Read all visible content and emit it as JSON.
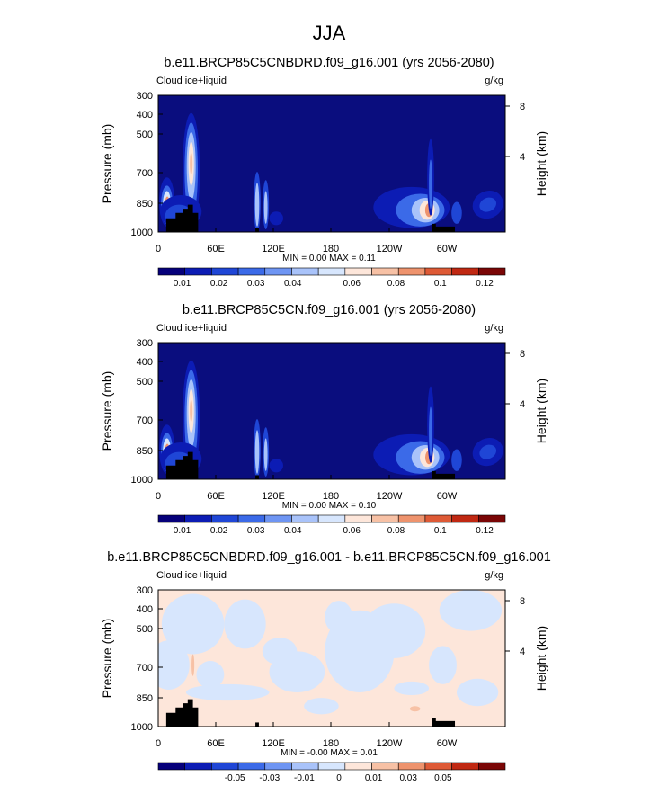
{
  "page": {
    "title": "JJA"
  },
  "colors": {
    "levels12": [
      "#06007a",
      "#0c1cb4",
      "#1f46d6",
      "#3b6ae8",
      "#6e95f3",
      "#a9c3fa",
      "#d7e6fd",
      "#fde6da",
      "#f7c1a5",
      "#ee936d",
      "#de5a36",
      "#c02812",
      "#7a0606"
    ],
    "diff12": [
      "#06007a",
      "#0c1cb4",
      "#1f46d6",
      "#3b6ae8",
      "#6e95f3",
      "#a9c3fa",
      "#d7e6fd",
      "#fde6da",
      "#f7c1a5",
      "#ee936d",
      "#de5a36",
      "#c02812",
      "#7a0606"
    ],
    "background": "#0a0d7e",
    "diff_background": "#fde6da",
    "land": "#000000"
  },
  "chart_data": [
    {
      "type": "heatmap",
      "title": "b.e11.BRCP85C5CNBDRD.f09_g16.001 (yrs 2056-2080)",
      "left_label": "Cloud ice+liquid",
      "units": "g/kg",
      "ylabel": "Pressure (mb)",
      "y2label": "Height (km)",
      "yticks": [
        "300",
        "400",
        "500",
        "700",
        "850",
        "1000"
      ],
      "y2ticks": [
        "8",
        "4"
      ],
      "xticks": [
        "0",
        "60E",
        "120E",
        "180",
        "120W",
        "60W"
      ],
      "minmax": "MIN =   0.00  MAX =  0.11",
      "colorbar_labels": [
        "0.01",
        "0.02",
        "0.03",
        "0.04",
        "0.06",
        "0.08",
        "0.1",
        "0.12"
      ]
    },
    {
      "type": "heatmap",
      "title": "b.e11.BRCP85C5CN.f09_g16.001 (yrs 2056-2080)",
      "left_label": "Cloud ice+liquid",
      "units": "g/kg",
      "ylabel": "Pressure (mb)",
      "y2label": "Height (km)",
      "yticks": [
        "300",
        "400",
        "500",
        "700",
        "850",
        "1000"
      ],
      "y2ticks": [
        "8",
        "4"
      ],
      "xticks": [
        "0",
        "60E",
        "120E",
        "180",
        "120W",
        "60W"
      ],
      "minmax": "MIN =   0.00  MAX =  0.10",
      "colorbar_labels": [
        "0.01",
        "0.02",
        "0.03",
        "0.04",
        "0.06",
        "0.08",
        "0.1",
        "0.12"
      ]
    },
    {
      "type": "heatmap",
      "title": "b.e11.BRCP85C5CNBDRD.f09_g16.001 - b.e11.BRCP85C5CN.f09_g16.001",
      "left_label": "Cloud ice+liquid",
      "units": "g/kg",
      "ylabel": "Pressure (mb)",
      "y2label": "Height (km)",
      "yticks": [
        "300",
        "400",
        "500",
        "700",
        "850",
        "1000"
      ],
      "y2ticks": [
        "8",
        "4"
      ],
      "xticks": [
        "0",
        "60E",
        "120E",
        "180",
        "120W",
        "60W"
      ],
      "minmax": "MIN =  -0.00  MAX =  0.01",
      "colorbar_labels": [
        "-0.05",
        "-0.03",
        "-0.01",
        "0",
        "0.01",
        "0.03",
        "0.05"
      ]
    }
  ]
}
